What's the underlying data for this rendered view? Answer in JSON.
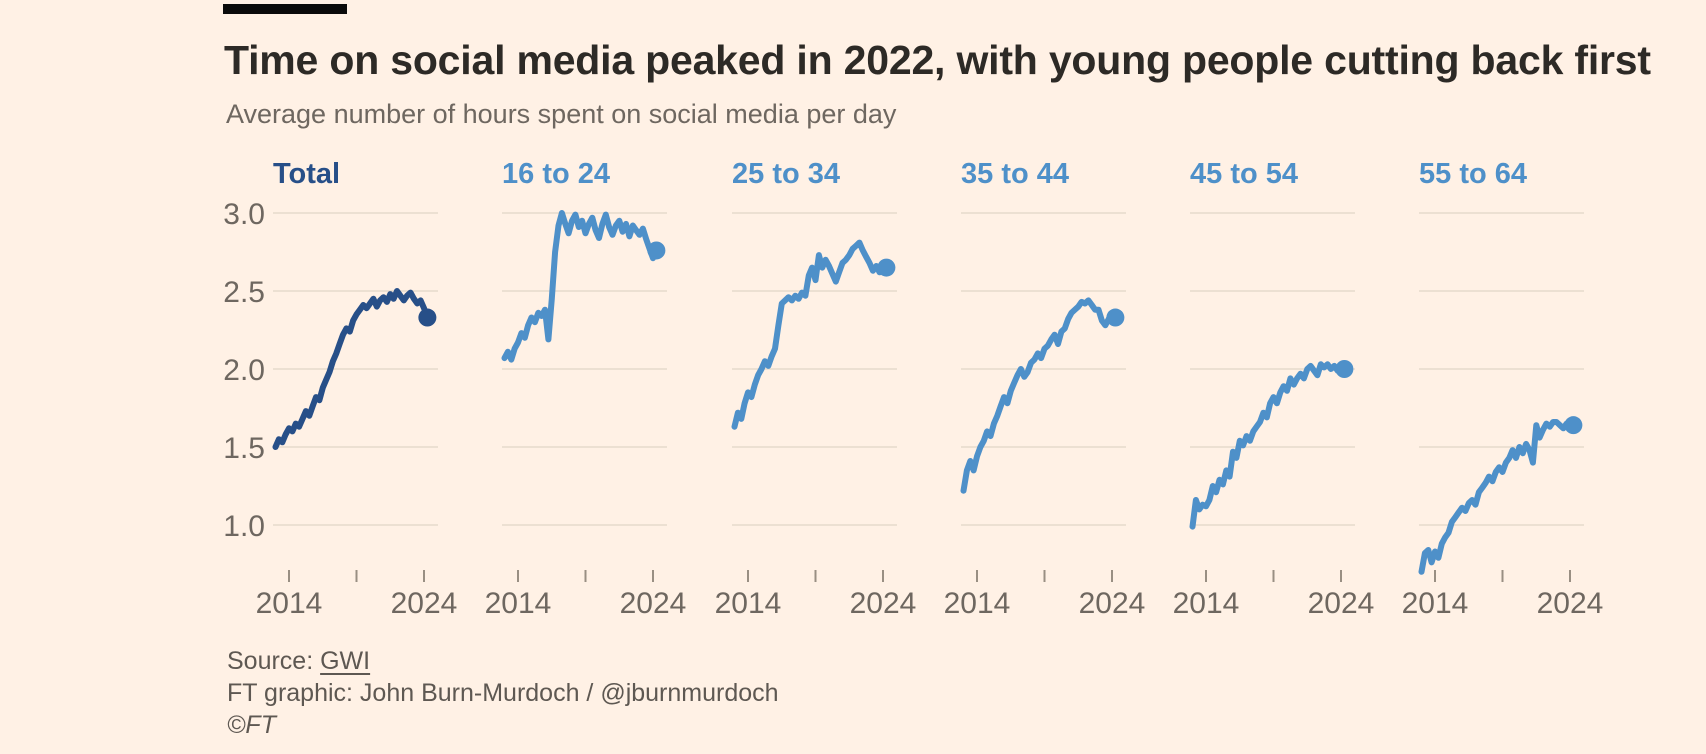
{
  "header": {
    "slug_bar_color": "#0a0a0a"
  },
  "footer": {
    "source_label": "Source: ",
    "source_link": "GWI",
    "credit": "FT graphic: John Burn-Murdoch / @jburnmurdoch",
    "copyright": "©FT"
  },
  "colors": {
    "background": "#FFF1E5",
    "title_text": "#2d2a26",
    "subtitle_text": "#6e6760",
    "axis_text": "#6e6760",
    "gridline": "#e6dacb",
    "tick_mark": "#998f83",
    "navy_series": "#274f88",
    "blue_series": "#4e90c9"
  },
  "chart_data": {
    "type": "line",
    "title": "Time on social media peaked in 2022, with young people cutting back first",
    "subtitle": "Average number of hours spent on social media per day",
    "unit": "hours per day",
    "layout_hint": "six small multiples in one row, shared y axis labelled on first panel only, grid on, no legend (panel titles act as labels), last point of each line marked with a filled dot",
    "ylim_display": [
      1.0,
      3.0
    ],
    "yticks": [
      3.0,
      2.5,
      2.0,
      1.5,
      1.0
    ],
    "xticks": [
      2014,
      2019,
      2024
    ],
    "xtick_labels_shown": [
      "2014",
      "2024"
    ],
    "x_start": 2013.0,
    "x_step": 0.25,
    "x_end": 2024.25,
    "panels": [
      {
        "label": "Total",
        "color": "#274f88",
        "values": [
          1.5,
          1.55,
          1.53,
          1.58,
          1.62,
          1.6,
          1.65,
          1.63,
          1.68,
          1.73,
          1.7,
          1.76,
          1.82,
          1.8,
          1.88,
          1.93,
          1.98,
          2.05,
          2.1,
          2.16,
          2.22,
          2.26,
          2.24,
          2.31,
          2.35,
          2.38,
          2.41,
          2.39,
          2.42,
          2.45,
          2.4,
          2.44,
          2.46,
          2.43,
          2.48,
          2.45,
          2.5,
          2.47,
          2.44,
          2.47,
          2.49,
          2.45,
          2.42,
          2.44,
          2.39,
          2.33
        ]
      },
      {
        "label": "16 to 24",
        "color": "#4e90c9",
        "values": [
          2.07,
          2.11,
          2.06,
          2.13,
          2.17,
          2.23,
          2.2,
          2.28,
          2.33,
          2.3,
          2.36,
          2.34,
          2.38,
          2.19,
          2.45,
          2.75,
          2.92,
          3.0,
          2.93,
          2.87,
          2.95,
          2.99,
          2.91,
          2.95,
          2.87,
          2.93,
          2.97,
          2.89,
          2.84,
          2.93,
          2.99,
          2.91,
          2.86,
          2.92,
          2.95,
          2.88,
          2.93,
          2.85,
          2.92,
          2.89,
          2.86,
          2.9,
          2.83,
          2.77,
          2.71,
          2.76
        ]
      },
      {
        "label": "25 to 34",
        "color": "#4e90c9",
        "values": [
          1.63,
          1.72,
          1.68,
          1.78,
          1.85,
          1.82,
          1.9,
          1.96,
          2.0,
          2.05,
          2.02,
          2.08,
          2.13,
          2.28,
          2.42,
          2.44,
          2.46,
          2.44,
          2.47,
          2.45,
          2.49,
          2.47,
          2.6,
          2.65,
          2.57,
          2.73,
          2.65,
          2.7,
          2.66,
          2.61,
          2.56,
          2.62,
          2.68,
          2.7,
          2.73,
          2.77,
          2.79,
          2.81,
          2.76,
          2.72,
          2.68,
          2.63,
          2.66,
          2.62,
          2.63,
          2.65
        ]
      },
      {
        "label": "35 to 44",
        "color": "#4e90c9",
        "values": [
          1.22,
          1.35,
          1.41,
          1.35,
          1.44,
          1.5,
          1.54,
          1.6,
          1.57,
          1.65,
          1.7,
          1.76,
          1.82,
          1.78,
          1.86,
          1.91,
          1.96,
          2.0,
          1.95,
          1.98,
          2.04,
          2.06,
          2.1,
          2.07,
          2.13,
          2.15,
          2.19,
          2.22,
          2.16,
          2.24,
          2.26,
          2.32,
          2.36,
          2.38,
          2.4,
          2.43,
          2.42,
          2.44,
          2.41,
          2.38,
          2.38,
          2.31,
          2.28,
          2.32,
          2.35,
          2.33
        ]
      },
      {
        "label": "45 to 54",
        "color": "#4e90c9",
        "values": [
          0.99,
          1.16,
          1.1,
          1.13,
          1.12,
          1.16,
          1.25,
          1.21,
          1.29,
          1.26,
          1.35,
          1.31,
          1.47,
          1.43,
          1.54,
          1.51,
          1.57,
          1.54,
          1.6,
          1.63,
          1.66,
          1.72,
          1.69,
          1.78,
          1.82,
          1.78,
          1.85,
          1.89,
          1.86,
          1.94,
          1.9,
          1.94,
          1.97,
          1.94,
          2.0,
          2.02,
          1.99,
          1.96,
          2.03,
          2.01,
          2.03,
          2.0,
          2.02,
          1.99,
          2.01,
          2.0
        ]
      },
      {
        "label": "55 to 64",
        "color": "#4e90c9",
        "values": [
          0.7,
          0.82,
          0.84,
          0.76,
          0.83,
          0.79,
          0.88,
          0.92,
          0.95,
          1.02,
          1.05,
          1.08,
          1.11,
          1.09,
          1.14,
          1.16,
          1.13,
          1.21,
          1.24,
          1.27,
          1.31,
          1.28,
          1.34,
          1.37,
          1.34,
          1.4,
          1.43,
          1.48,
          1.43,
          1.5,
          1.46,
          1.52,
          1.48,
          1.4,
          1.64,
          1.56,
          1.61,
          1.65,
          1.63,
          1.66,
          1.66,
          1.64,
          1.62,
          1.65,
          1.63,
          1.64
        ]
      }
    ]
  }
}
